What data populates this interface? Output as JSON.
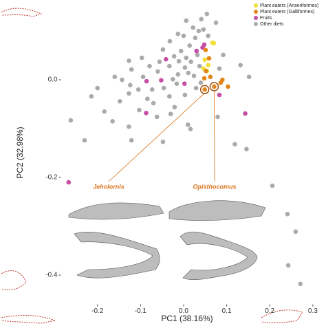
{
  "chart_data": {
    "type": "scatter",
    "xlabel": "PC1 (38.16%)",
    "ylabel": "PC2 (32.98%)",
    "xlim": [
      -0.285,
      0.305
    ],
    "ylim": [
      -0.46,
      0.16
    ],
    "xticks": [
      -0.2,
      -0.1,
      {
        "value": 0,
        "label": "0.0"
      },
      0.1,
      0.2,
      0.3
    ],
    "yticks": [
      {
        "value": 0,
        "label": "0.0"
      },
      -0.2,
      -0.4
    ],
    "grid": false,
    "legend": "top-right",
    "annotations": [
      "Jeholornis",
      "Opisthocomus"
    ],
    "series": [
      {
        "name": "Plant eaters (Anseriformes)",
        "color": "#f0df36",
        "x": [
          0.07,
          0.049,
          0.054,
          0.046,
          0.067,
          0.057
        ],
        "y": [
          0.075,
          0.041,
          0.018,
          0.023,
          0.076,
          0.03
        ]
      },
      {
        "name": "Plant eaters (Galliformes)",
        "color": "#e0861a",
        "x": [
          0.051,
          0.059,
          0.052,
          0.062,
          0.086,
          0.103,
          0.09,
          0.048,
          0.049,
          0.071
        ],
        "y": [
          0.061,
          0.044,
          0.018,
          0.006,
          -0.006,
          -0.014,
          0,
          0.003,
          -0.02,
          -0.014
        ]
      },
      {
        "name": "Fruits",
        "color": "#c64ea6",
        "x": [
          -0.267,
          -0.087,
          -0.086,
          -0.041,
          -0.052,
          0.03,
          0.044,
          0.143,
          0.083,
          0.002,
          0.048
        ],
        "y": [
          -0.21,
          -0.068,
          -0.003,
          0.042,
          -0.001,
          0.059,
          0.066,
          -0.069,
          -0.031,
          -0.008,
          0.072
        ]
      },
      {
        "name": "Other diets",
        "color": "#aaaaaa",
        "x": [
          -0.262,
          -0.23,
          -0.165,
          -0.184,
          -0.127,
          -0.121,
          -0.048,
          0.01,
          0.016,
          0.119,
          0.146,
          0.206,
          0.241,
          0.26,
          0.271,
          0.243,
          0.079,
          -0.214,
          -0.2,
          0.152,
          0.132,
          0.075,
          0.041,
          0.046,
          0.006,
          -0.013,
          -0.097,
          -0.121,
          -0.148,
          -0.103,
          -0.062,
          -0.021,
          -0.033,
          -0.073,
          -0.105,
          -0.127,
          -0.06,
          -0.033,
          -0.022,
          -0.006,
          0.014,
          0.027,
          0.035,
          0.017,
          0.003,
          -0.013,
          0.024,
          0.029,
          0.003,
          -0.016,
          -0.046,
          -0.07,
          -0.084,
          -0.124,
          -0.16,
          -0.048,
          -0.032,
          0,
          0.022,
          0.057,
          0.054,
          0.032,
          0.006,
          -0.011,
          -0.056,
          -0.079,
          -0.094,
          -0.143,
          -0.025,
          0.011,
          0.037,
          0.083,
          0.092,
          0.04,
          -0.03,
          -0.127
        ],
        "y": [
          -0.083,
          -0.124,
          -0.085,
          -0.065,
          -0.096,
          -0.124,
          -0.127,
          -0.092,
          -0.101,
          -0.132,
          -0.142,
          -0.217,
          -0.275,
          -0.311,
          -0.418,
          -0.38,
          -0.076,
          -0.034,
          -0.017,
          0.006,
          0.03,
          0.117,
          0.124,
          0.103,
          0.121,
          0.094,
          0.045,
          0.021,
          -0.044,
          -0.062,
          -0.076,
          -0.056,
          -0.034,
          -0.02,
          -0.02,
          -0.028,
          0.017,
          0.028,
          0.048,
          0.059,
          0.07,
          0.086,
          0.1,
          0.037,
          0.025,
          0.011,
          0.008,
          -0.017,
          -0.031,
          -0.008,
          -0.017,
          -0.048,
          -0.039,
          -0.011,
          0.006,
          0.062,
          0.079,
          0.09,
          0.107,
          0.09,
          0.135,
          0.051,
          0.045,
          0.038,
          0.037,
          0.028,
          0.006,
          0,
          0.001,
          0.014,
          0.028,
          0.023,
          0.051,
          -0.006,
          -0.07,
          0.039
        ]
      }
    ]
  }
}
